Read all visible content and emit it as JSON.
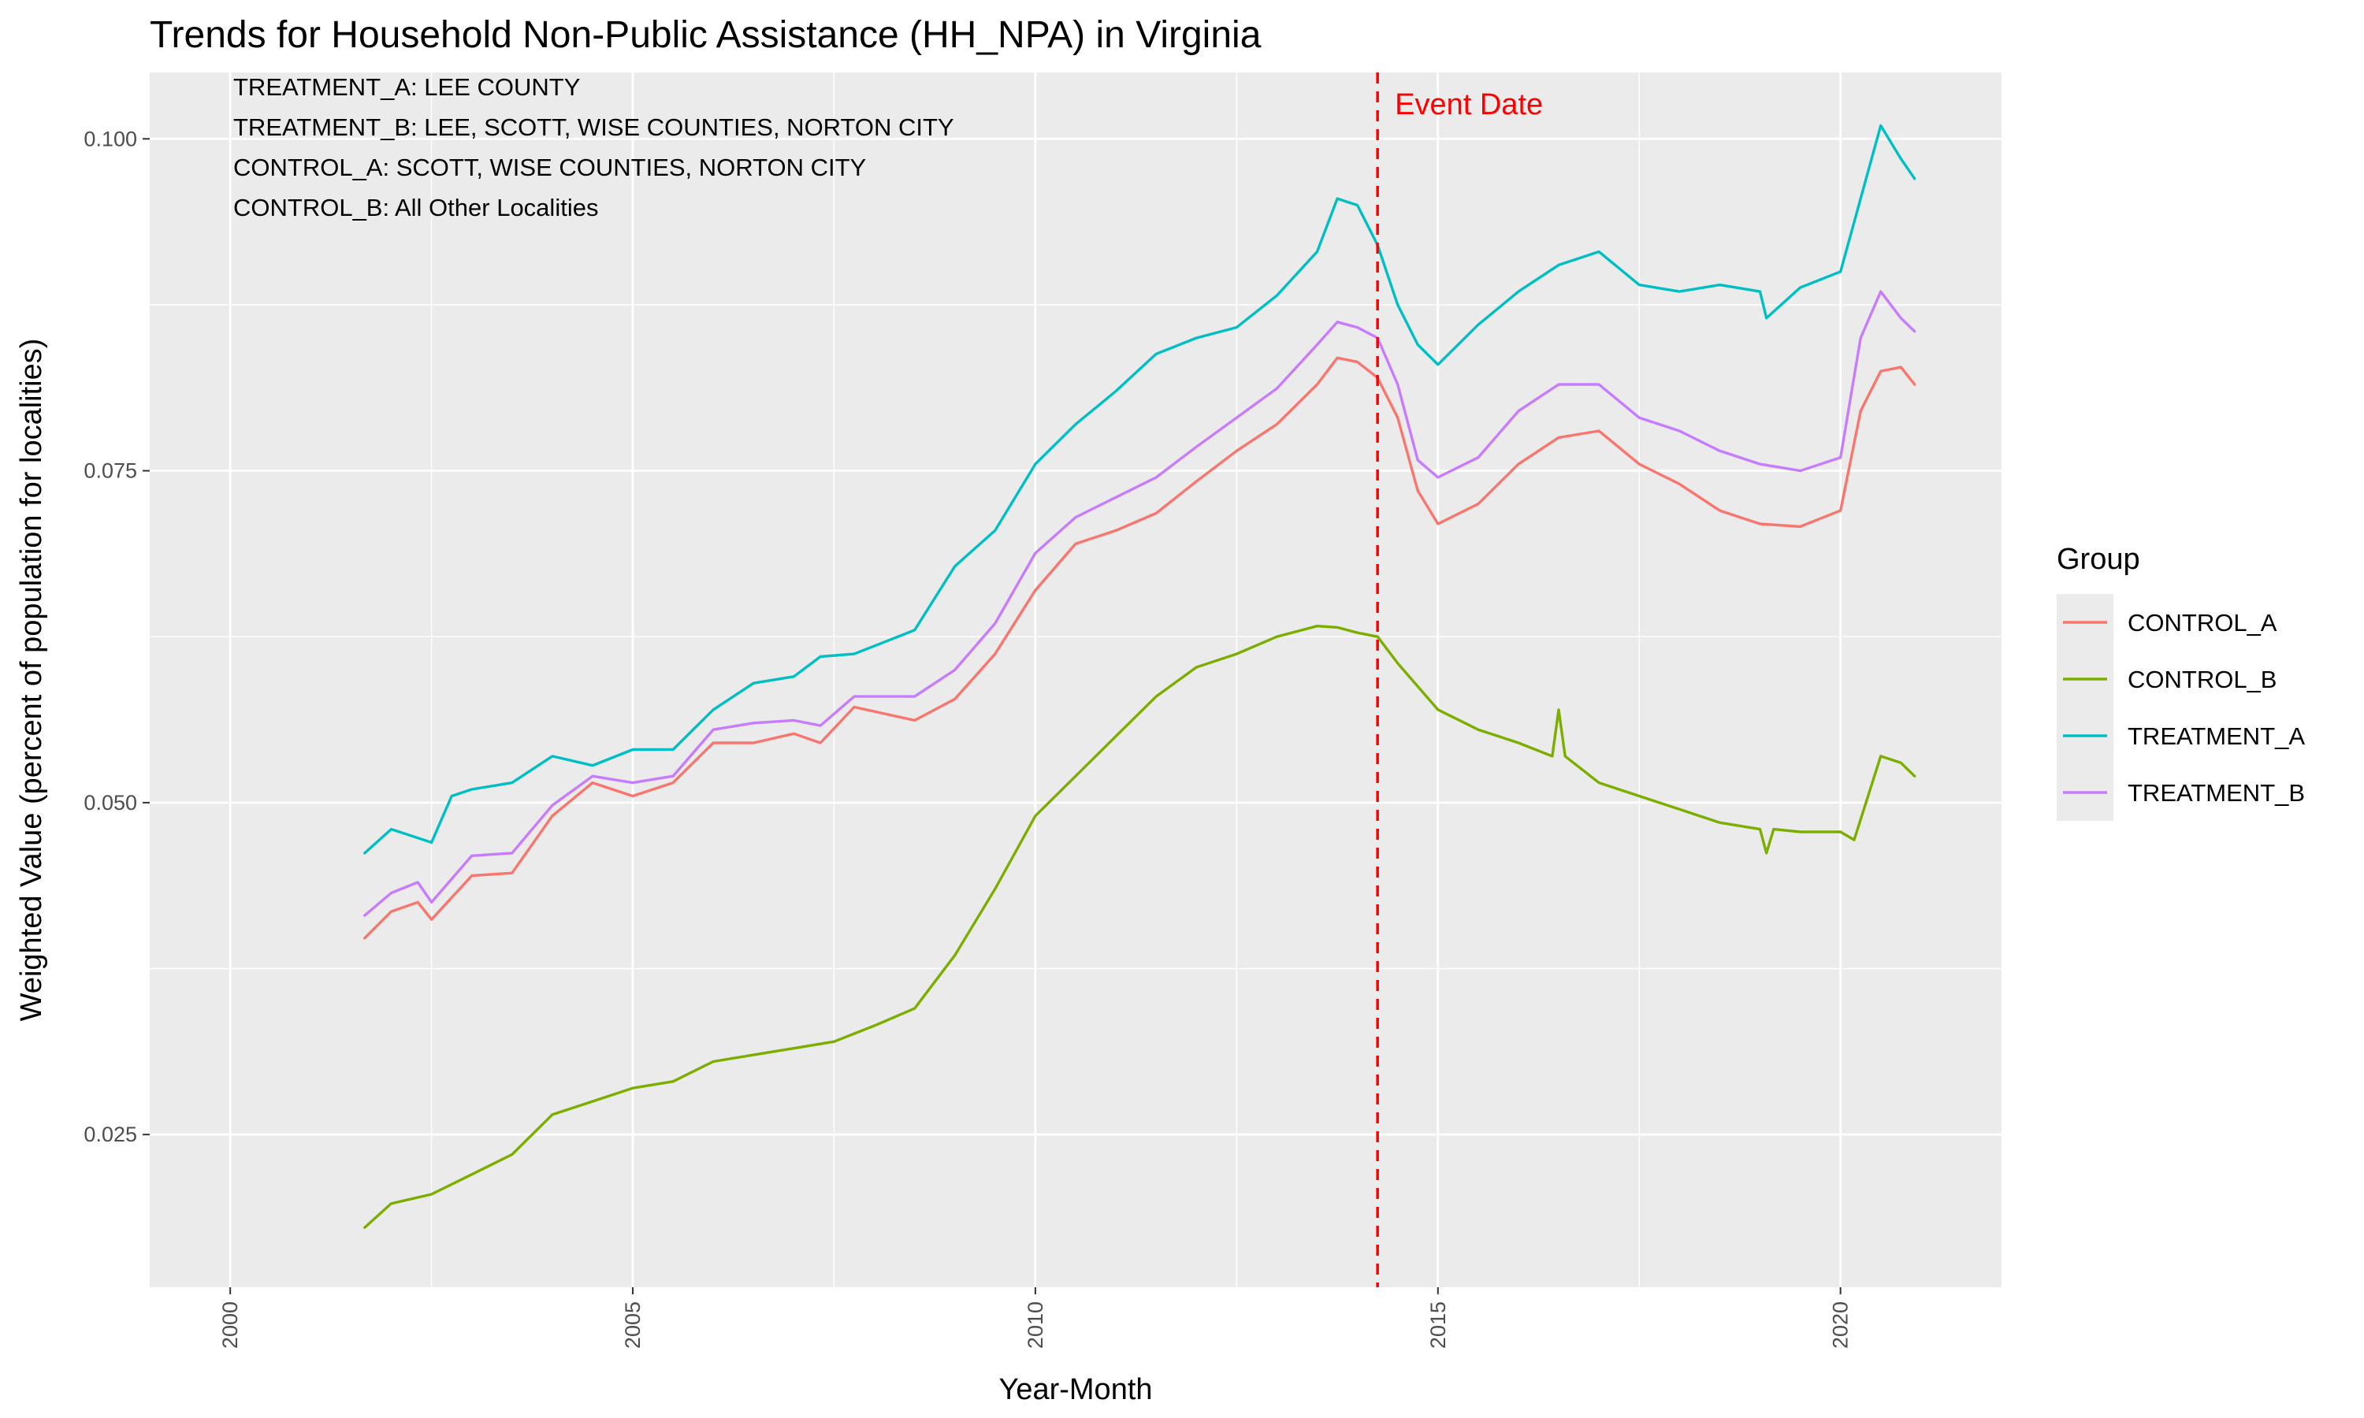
{
  "chart_data": {
    "type": "line",
    "title": "Trends for Household Non-Public Assistance (HH_NPA) in Virginia",
    "xlabel": "Year-Month",
    "ylabel": "Weighted Value (percent of population for localities)",
    "xlim": [
      1999,
      2022
    ],
    "ylim": [
      0.0135,
      0.105
    ],
    "x_ticks": [
      2000,
      2005,
      2010,
      2015,
      2020
    ],
    "x_tick_labels": [
      "2000",
      "2005",
      "2010",
      "2015",
      "2020"
    ],
    "y_ticks": [
      0.025,
      0.05,
      0.075,
      0.1
    ],
    "y_tick_labels": [
      "0.025",
      "0.050",
      "0.075",
      "0.100"
    ],
    "grid": true,
    "background": "#ebebeb",
    "notes": [
      "TREATMENT_A: LEE COUNTY",
      "TREATMENT_B: LEE, SCOTT, WISE COUNTIES, NORTON CITY",
      "CONTROL_A: SCOTT, WISE COUNTIES, NORTON CITY",
      "CONTROL_B: All Other Localities"
    ],
    "event": {
      "x": 2014.25,
      "label": "Event Date",
      "color": "#ff0000"
    },
    "legend": {
      "title": "Group",
      "position": "right"
    },
    "series": [
      {
        "name": "CONTROL_A",
        "color": "#F8766D",
        "x": [
          2001.67,
          2002,
          2002.33,
          2002.5,
          2003,
          2003.5,
          2004,
          2004.5,
          2005,
          2005.5,
          2006,
          2006.5,
          2007,
          2007.33,
          2007.75,
          2008.5,
          2009,
          2009.5,
          2010,
          2010.5,
          2011,
          2011.5,
          2012,
          2012.5,
          2013,
          2013.5,
          2013.75,
          2014,
          2014.25,
          2014.5,
          2014.75,
          2015,
          2015.5,
          2016,
          2016.5,
          2017,
          2017.5,
          2018,
          2018.5,
          2019,
          2019.5,
          2020,
          2020.25,
          2020.5,
          2020.75,
          2020.92
        ],
        "y": [
          0.0398,
          0.0418,
          0.0425,
          0.0412,
          0.0445,
          0.0447,
          0.049,
          0.0515,
          0.0505,
          0.0515,
          0.0545,
          0.0545,
          0.0552,
          0.0545,
          0.0572,
          0.0562,
          0.0578,
          0.0612,
          0.066,
          0.0695,
          0.0705,
          0.0718,
          0.0742,
          0.0765,
          0.0785,
          0.0815,
          0.0835,
          0.0832,
          0.082,
          0.079,
          0.0735,
          0.071,
          0.0725,
          0.0755,
          0.0775,
          0.078,
          0.0755,
          0.074,
          0.072,
          0.071,
          0.0708,
          0.072,
          0.0795,
          0.0825,
          0.0828,
          0.0815
        ]
      },
      {
        "name": "CONTROL_B",
        "color": "#7CAE00",
        "x": [
          2001.67,
          2002,
          2002.5,
          2003,
          2003.5,
          2004,
          2004.5,
          2005,
          2005.5,
          2006,
          2006.5,
          2007,
          2007.5,
          2008,
          2008.5,
          2009,
          2009.5,
          2010,
          2010.5,
          2011,
          2011.5,
          2012,
          2012.5,
          2013,
          2013.5,
          2013.75,
          2014,
          2014.25,
          2014.5,
          2015,
          2015.5,
          2016,
          2016.42,
          2016.5,
          2016.58,
          2017,
          2017.5,
          2018,
          2018.5,
          2019,
          2019.08,
          2019.17,
          2019.5,
          2020,
          2020.17,
          2020.5,
          2020.75,
          2020.92
        ],
        "y": [
          0.018,
          0.0198,
          0.0205,
          0.022,
          0.0235,
          0.0265,
          0.0275,
          0.0285,
          0.029,
          0.0305,
          0.031,
          0.0315,
          0.032,
          0.0332,
          0.0345,
          0.0385,
          0.0435,
          0.049,
          0.052,
          0.055,
          0.058,
          0.0602,
          0.0612,
          0.0625,
          0.0633,
          0.0632,
          0.0628,
          0.0625,
          0.0605,
          0.057,
          0.0555,
          0.0545,
          0.0535,
          0.057,
          0.0535,
          0.0515,
          0.0505,
          0.0495,
          0.0485,
          0.048,
          0.0462,
          0.048,
          0.0478,
          0.0478,
          0.0472,
          0.0535,
          0.053,
          0.052
        ]
      },
      {
        "name": "TREATMENT_A",
        "color": "#00BFC4",
        "x": [
          2001.67,
          2002,
          2002.5,
          2002.75,
          2003,
          2003.5,
          2004,
          2004.5,
          2005,
          2005.5,
          2006,
          2006.5,
          2007,
          2007.33,
          2007.75,
          2008.5,
          2009,
          2009.5,
          2010,
          2010.5,
          2011,
          2011.5,
          2012,
          2012.5,
          2013,
          2013.5,
          2013.75,
          2014,
          2014.25,
          2014.5,
          2014.75,
          2015,
          2015.5,
          2016,
          2016.5,
          2017,
          2017.5,
          2018,
          2018.5,
          2019,
          2019.08,
          2019.5,
          2020,
          2020.25,
          2020.5,
          2020.75,
          2020.92
        ],
        "y": [
          0.0462,
          0.048,
          0.047,
          0.0505,
          0.051,
          0.0515,
          0.0535,
          0.0528,
          0.054,
          0.054,
          0.057,
          0.059,
          0.0595,
          0.061,
          0.0612,
          0.063,
          0.0678,
          0.0705,
          0.0755,
          0.0785,
          0.081,
          0.0838,
          0.085,
          0.0858,
          0.0882,
          0.0915,
          0.0955,
          0.095,
          0.092,
          0.0875,
          0.0845,
          0.083,
          0.086,
          0.0885,
          0.0905,
          0.0915,
          0.089,
          0.0885,
          0.089,
          0.0885,
          0.0865,
          0.0888,
          0.09,
          0.0955,
          0.101,
          0.0985,
          0.097
        ]
      },
      {
        "name": "TREATMENT_B",
        "color": "#C77CFF",
        "x": [
          2001.67,
          2002,
          2002.33,
          2002.5,
          2003,
          2003.5,
          2004,
          2004.5,
          2005,
          2005.5,
          2006,
          2006.5,
          2007,
          2007.33,
          2007.75,
          2008.5,
          2009,
          2009.5,
          2010,
          2010.5,
          2011,
          2011.5,
          2012,
          2012.5,
          2013,
          2013.5,
          2013.75,
          2014,
          2014.25,
          2014.5,
          2014.75,
          2015,
          2015.5,
          2016,
          2016.5,
          2017,
          2017.5,
          2018,
          2018.5,
          2019,
          2019.5,
          2020,
          2020.25,
          2020.5,
          2020.75,
          2020.92
        ],
        "y": [
          0.0415,
          0.0432,
          0.044,
          0.0425,
          0.046,
          0.0462,
          0.0498,
          0.052,
          0.0515,
          0.052,
          0.0555,
          0.056,
          0.0562,
          0.0558,
          0.058,
          0.058,
          0.06,
          0.0635,
          0.0688,
          0.0715,
          0.073,
          0.0745,
          0.0768,
          0.079,
          0.0812,
          0.0845,
          0.0862,
          0.0858,
          0.085,
          0.0815,
          0.0758,
          0.0745,
          0.076,
          0.0795,
          0.0815,
          0.0815,
          0.079,
          0.078,
          0.0765,
          0.0755,
          0.075,
          0.076,
          0.085,
          0.0885,
          0.0865,
          0.0855
        ]
      }
    ]
  }
}
